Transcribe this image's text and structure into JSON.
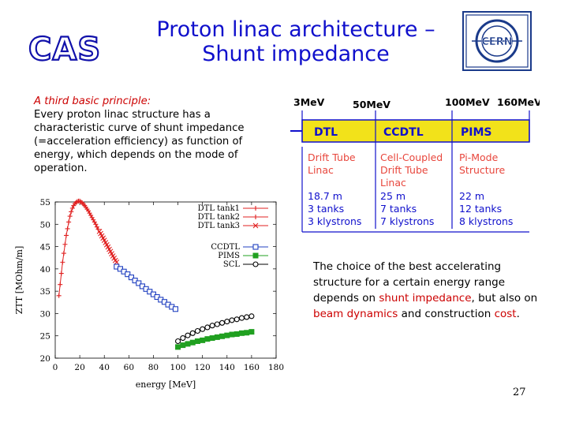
{
  "slide": {
    "title_line1": "Proton linac architecture –",
    "title_line2": "Shunt impedance",
    "logo_left_text": "CAS",
    "logo_right_text": "CERN",
    "intro_heading": "A third basic principle:",
    "intro_body": "Every proton linac structure has a characteristic curve of shunt impedance (=acceleration efficiency) as function of energy, which depends on the mode of operation.",
    "choice_p1": "The choice of the best accelerating structure for a certain energy range depends on ",
    "choice_h1": "shunt impedance",
    "choice_p2": ", but also on ",
    "choice_h2": "beam dynamics",
    "choice_p3": " and construction ",
    "choice_h3": "cost",
    "choice_p4": ".",
    "page_number": "27"
  },
  "architecture": {
    "energies": [
      "3MeV",
      "50MeV",
      "100MeV",
      "160MeV"
    ],
    "sections": [
      {
        "abbr": "DTL",
        "name_lines": [
          "Drift Tube",
          "Linac"
        ],
        "specs": [
          "18.7 m",
          "3 tanks",
          "3 klystrons"
        ]
      },
      {
        "abbr": "CCDTL",
        "name_lines": [
          "Cell-Coupled",
          "Drift Tube",
          "Linac"
        ],
        "specs": [
          "25 m",
          "7 tanks",
          "7 klystrons"
        ]
      },
      {
        "abbr": "PIMS",
        "name_lines": [
          "Pi-Mode",
          "Structure"
        ],
        "specs": [
          "22 m",
          "12 tanks",
          "8 klystrons"
        ]
      }
    ],
    "colors": {
      "band": "#f2e21a",
      "name_text": "#e8463c",
      "spec_text": "#1010cc",
      "line": "#1010cc"
    }
  },
  "chart_data": {
    "type": "scatter",
    "xlabel": "energy [MeV]",
    "ylabel": "ZTT [MOhm/m]",
    "xlim": [
      0,
      180
    ],
    "ylim": [
      20,
      55
    ],
    "xticks": [
      0,
      20,
      40,
      60,
      80,
      100,
      120,
      140,
      160,
      180
    ],
    "yticks": [
      20,
      25,
      30,
      35,
      40,
      45,
      50,
      55
    ],
    "legend_position": "top-right",
    "series": [
      {
        "name": "DTL tank1",
        "marker": "plus",
        "color": "#e02020",
        "x": [
          3,
          4,
          5,
          6,
          7,
          8,
          9,
          10,
          11,
          12,
          13,
          14,
          15,
          16,
          17,
          18,
          19,
          20
        ],
        "y": [
          34,
          36.5,
          39,
          41.5,
          43.5,
          45.5,
          47.5,
          49,
          50.5,
          51.8,
          52.8,
          53.6,
          54.2,
          54.6,
          54.9,
          55.1,
          55.2,
          55.2
        ]
      },
      {
        "name": "DTL tank2",
        "marker": "plus",
        "color": "#e02020",
        "x": [
          21,
          22,
          23,
          24,
          25,
          26,
          27,
          28,
          29,
          30,
          31,
          32,
          33,
          34,
          35
        ],
        "y": [
          55.0,
          54.8,
          54.5,
          54.2,
          53.8,
          53.4,
          53.0,
          52.5,
          52.0,
          51.5,
          51.0,
          50.5,
          50.0,
          49.4,
          48.9
        ]
      },
      {
        "name": "DTL tank3",
        "marker": "x",
        "color": "#e02020",
        "x": [
          36,
          37,
          38,
          39,
          40,
          41,
          42,
          43,
          44,
          45,
          46,
          47,
          48,
          49,
          50
        ],
        "y": [
          48.4,
          47.9,
          47.4,
          46.9,
          46.4,
          45.9,
          45.4,
          44.9,
          44.4,
          43.9,
          43.4,
          42.9,
          42.4,
          41.9,
          41.5
        ]
      },
      {
        "name": "CCDTL",
        "marker": "square-open",
        "color": "#2040c0",
        "x": [
          50,
          53,
          56,
          59,
          62,
          65,
          68,
          71,
          74,
          77,
          80,
          83,
          86,
          89,
          92,
          95,
          98
        ],
        "y": [
          40.5,
          40.0,
          39.4,
          38.8,
          38.1,
          37.4,
          36.8,
          36.1,
          35.5,
          34.9,
          34.3,
          33.7,
          33.1,
          32.6,
          32.0,
          31.5,
          31.0
        ]
      },
      {
        "name": "PIMS",
        "marker": "square-filled",
        "color": "#20a020",
        "x": [
          100,
          104,
          108,
          112,
          116,
          120,
          124,
          128,
          132,
          136,
          140,
          144,
          148,
          152,
          156,
          160
        ],
        "y": [
          22.5,
          22.9,
          23.2,
          23.5,
          23.8,
          24.0,
          24.3,
          24.5,
          24.7,
          24.9,
          25.1,
          25.3,
          25.4,
          25.6,
          25.7,
          25.9
        ]
      },
      {
        "name": "SCL",
        "marker": "circle-open",
        "color": "#000000",
        "x": [
          100,
          104,
          108,
          112,
          116,
          120,
          124,
          128,
          132,
          136,
          140,
          144,
          148,
          152,
          156,
          160
        ],
        "y": [
          23.8,
          24.5,
          25.1,
          25.6,
          26.1,
          26.5,
          26.9,
          27.3,
          27.6,
          27.9,
          28.2,
          28.5,
          28.7,
          29.0,
          29.2,
          29.4
        ]
      }
    ]
  }
}
